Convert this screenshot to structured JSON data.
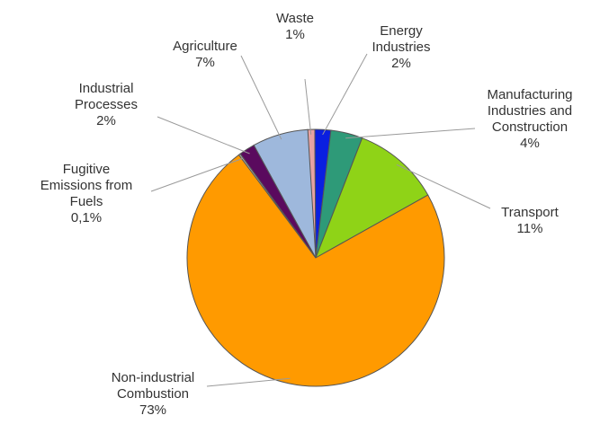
{
  "chart_data": {
    "type": "pie",
    "slices": [
      {
        "label_lines": [
          "Waste",
          "1%"
        ],
        "value": 1,
        "color": "#e6a3a3"
      },
      {
        "label_lines": [
          "Energy",
          "Industries",
          "2%"
        ],
        "value": 2,
        "color": "#0a1fe0"
      },
      {
        "label_lines": [
          "Manufacturing",
          "Industries and",
          "Construction",
          "4%"
        ],
        "value": 4,
        "color": "#2e9a78"
      },
      {
        "label_lines": [
          "Transport",
          "11%"
        ],
        "value": 11,
        "color": "#8fd317"
      },
      {
        "label_lines": [
          "Non-industrial",
          "Combustion",
          "73%"
        ],
        "value": 73,
        "color": "#ff9a00"
      },
      {
        "label_lines": [
          "Fugitive",
          "Emissions from",
          "Fuels",
          "0,1%"
        ],
        "value": 0.1,
        "color": "#b0b0b0"
      },
      {
        "label_lines": [
          "Industrial",
          "Processes",
          "2%"
        ],
        "value": 2,
        "color": "#5a0a5e"
      },
      {
        "label_lines": [
          "Agriculture",
          "7%"
        ],
        "value": 7,
        "color": "#9eb8dc"
      }
    ]
  }
}
